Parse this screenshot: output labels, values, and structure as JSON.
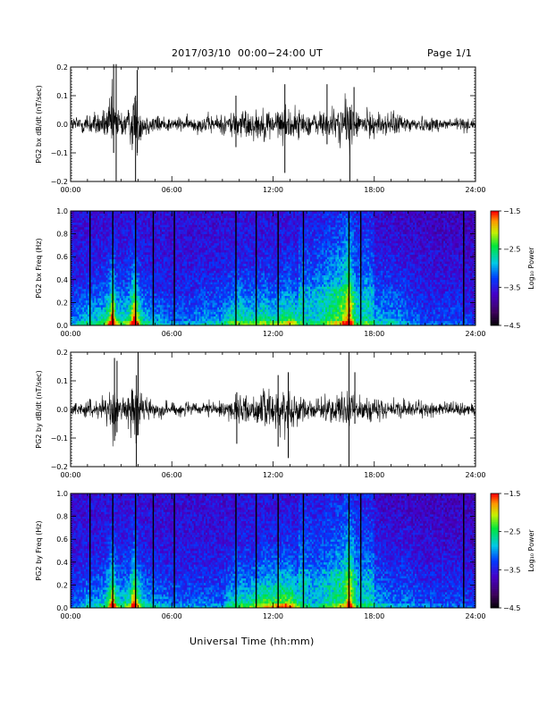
{
  "header": {
    "title": "2017/03/10  00:00−24:00 UT",
    "page": "Page 1/1"
  },
  "chart_data": [
    {
      "type": "line",
      "ylabel": "PG2 bx dB/dt (nT/sec)",
      "ylim": [
        -0.2,
        0.2
      ],
      "yticks": [
        "0.2",
        "0.1",
        "0.0",
        "−0.1",
        "−0.2"
      ],
      "xticks": [
        "00:00",
        "06:00",
        "12:00",
        "18:00",
        "24:00"
      ],
      "xlim": [
        0,
        24
      ],
      "envelope": {
        "hours": [
          0,
          0.5,
          1,
          1.5,
          2,
          2.3,
          2.5,
          2.7,
          3,
          3.5,
          3.8,
          4,
          4.3,
          5,
          6,
          7,
          8,
          9,
          9.5,
          10,
          10.5,
          11,
          11.5,
          12,
          12.5,
          13,
          13.5,
          14,
          14.5,
          15,
          15.5,
          16,
          16.3,
          16.5,
          16.8,
          17,
          17.5,
          18,
          19,
          20,
          21,
          22,
          23,
          23.5,
          24
        ],
        "amplitude": [
          0.03,
          0.04,
          0.05,
          0.05,
          0.06,
          0.09,
          0.16,
          0.07,
          0.06,
          0.07,
          0.16,
          0.09,
          0.05,
          0.04,
          0.03,
          0.03,
          0.04,
          0.04,
          0.06,
          0.07,
          0.06,
          0.06,
          0.07,
          0.06,
          0.07,
          0.08,
          0.06,
          0.05,
          0.05,
          0.06,
          0.07,
          0.08,
          0.1,
          0.13,
          0.07,
          0.05,
          0.06,
          0.05,
          0.05,
          0.04,
          0.03,
          0.03,
          0.03,
          0.03,
          0.02
        ]
      },
      "spikes": [
        {
          "hour": 2.55,
          "min": -0.1,
          "max": 0.21
        },
        {
          "hour": 2.7,
          "min": -0.2,
          "max": 0.21
        },
        {
          "hour": 3.85,
          "min": -0.2,
          "max": 0.1
        },
        {
          "hour": 3.95,
          "min": -0.1,
          "max": 0.19
        },
        {
          "hour": 9.8,
          "min": -0.08,
          "max": 0.1
        },
        {
          "hour": 12.7,
          "min": -0.17,
          "max": 0.14
        },
        {
          "hour": 15.2,
          "min": -0.07,
          "max": 0.14
        },
        {
          "hour": 16.55,
          "min": -0.2,
          "max": 0.06
        },
        {
          "hour": 16.8,
          "min": -0.04,
          "max": 0.13
        }
      ]
    },
    {
      "type": "heatmap",
      "ylabel": "PG2 bx Freq (Hz)",
      "ylim": [
        0.0,
        1.0
      ],
      "yticks": [
        "1.0",
        "0.8",
        "0.6",
        "0.4",
        "0.2",
        "0.0"
      ],
      "xticks": [
        "00:00",
        "06:00",
        "12:00",
        "18:00",
        "24:00"
      ],
      "xlim": [
        0,
        24
      ],
      "colorbar": {
        "label": "Log₁₀ Power",
        "range": [
          -4.5,
          -1.5
        ],
        "ticks": [
          "−1.5",
          "−2.5",
          "−3.5",
          "−4.5"
        ]
      },
      "gaps_hours": [
        1.15,
        2.5,
        3.85,
        4.9,
        6.15,
        9.8,
        11.0,
        12.3,
        13.8,
        16.5,
        17.2,
        23.3
      ]
    },
    {
      "type": "line",
      "ylabel": "PG2 by dB/dt (nT/sec)",
      "ylim": [
        -0.2,
        0.2
      ],
      "yticks": [
        "0.2",
        "0.1",
        "0.0",
        "−0.1",
        "−0.2"
      ],
      "xticks": [
        "00:00",
        "06:00",
        "12:00",
        "18:00",
        "24:00"
      ],
      "xlim": [
        0,
        24
      ],
      "envelope": {
        "hours": [
          0,
          0.5,
          1,
          1.5,
          2,
          2.3,
          2.5,
          2.7,
          3,
          3.5,
          3.8,
          4,
          4.3,
          5,
          6,
          7,
          8,
          9,
          9.5,
          10,
          10.5,
          11,
          11.5,
          12,
          12.5,
          13,
          13.5,
          14,
          14.5,
          15,
          15.5,
          16,
          16.3,
          16.5,
          16.8,
          17,
          17.5,
          18,
          19,
          20,
          21,
          22,
          23,
          23.5,
          24
        ],
        "amplitude": [
          0.02,
          0.03,
          0.04,
          0.04,
          0.05,
          0.08,
          0.14,
          0.07,
          0.05,
          0.07,
          0.14,
          0.08,
          0.05,
          0.04,
          0.03,
          0.03,
          0.03,
          0.03,
          0.05,
          0.06,
          0.06,
          0.07,
          0.08,
          0.08,
          0.09,
          0.09,
          0.06,
          0.05,
          0.04,
          0.05,
          0.06,
          0.07,
          0.08,
          0.12,
          0.07,
          0.05,
          0.05,
          0.05,
          0.04,
          0.04,
          0.03,
          0.03,
          0.03,
          0.03,
          0.02
        ]
      },
      "spikes": [
        {
          "hour": 2.6,
          "min": -0.11,
          "max": 0.18
        },
        {
          "hour": 2.75,
          "min": -0.08,
          "max": 0.17
        },
        {
          "hour": 3.9,
          "min": -0.2,
          "max": 0.12
        },
        {
          "hour": 4.0,
          "min": -0.09,
          "max": 0.2
        },
        {
          "hour": 9.85,
          "min": -0.12,
          "max": 0.06
        },
        {
          "hour": 12.3,
          "min": -0.13,
          "max": 0.12
        },
        {
          "hour": 12.9,
          "min": -0.17,
          "max": 0.13
        },
        {
          "hour": 16.5,
          "min": -0.2,
          "max": 0.2
        },
        {
          "hour": 16.85,
          "min": -0.05,
          "max": 0.13
        }
      ]
    },
    {
      "type": "heatmap",
      "ylabel": "PG2 by Freq (Hz)",
      "ylim": [
        0.0,
        1.0
      ],
      "yticks": [
        "1.0",
        "0.8",
        "0.6",
        "0.4",
        "0.2",
        "0.0"
      ],
      "xticks": [
        "00:00",
        "06:00",
        "12:00",
        "18:00",
        "24:00"
      ],
      "xlim": [
        0,
        24
      ],
      "colorbar": {
        "label": "Log₁₀ Power",
        "range": [
          -4.5,
          -1.5
        ],
        "ticks": [
          "−1.5",
          "−2.5",
          "−3.5",
          "−4.5"
        ]
      },
      "gaps_hours": [
        1.15,
        2.5,
        3.85,
        4.9,
        6.15,
        9.8,
        11.0,
        12.3,
        13.8,
        16.5,
        17.2,
        23.3
      ]
    }
  ],
  "xlabel": "Universal Time (hh:mm)"
}
